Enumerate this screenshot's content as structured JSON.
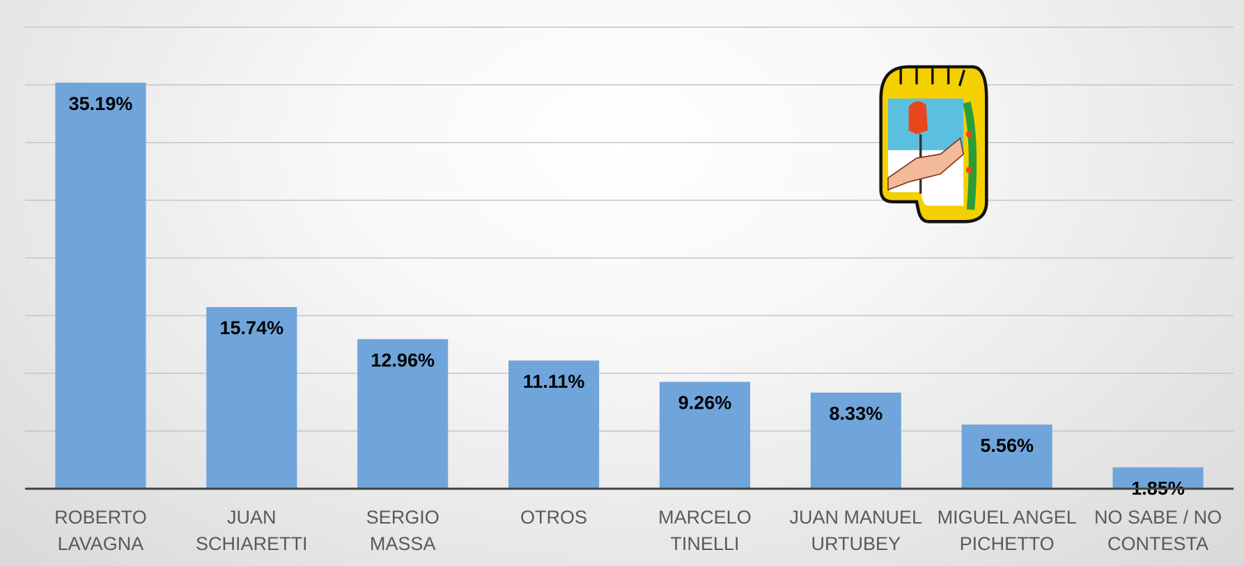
{
  "chart_data": {
    "type": "bar",
    "categories": [
      "ROBERTO LAVAGNA",
      "JUAN SCHIARETTI",
      "SERGIO MASSA",
      "OTROS",
      "MARCELO TINELLI",
      "JUAN MANUEL URTUBEY",
      "MIGUEL ANGEL PICHETTO",
      "NO SABE / NO CONTESTA"
    ],
    "values": [
      35.19,
      15.74,
      12.96,
      11.11,
      9.26,
      8.33,
      5.56,
      1.85
    ],
    "value_labels": [
      "35.19%",
      "15.74%",
      "12.96%",
      "11.11%",
      "9.26%",
      "8.33%",
      "5.56%",
      "1.85%"
    ],
    "color": "#6fa5da",
    "ylim": [
      0,
      40
    ],
    "yticks": [
      0,
      5,
      10,
      15,
      20,
      25,
      30,
      35,
      40
    ],
    "grid": true
  }
}
